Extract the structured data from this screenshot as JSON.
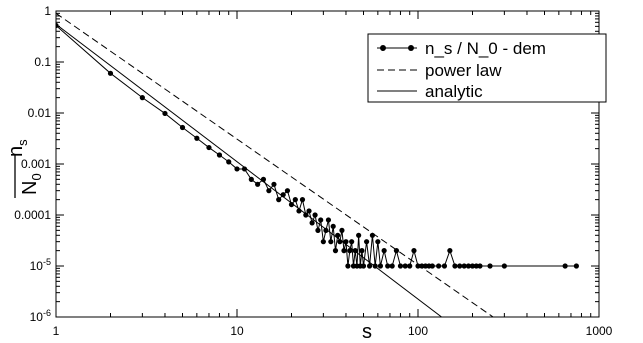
{
  "chart_data": {
    "type": "scatter",
    "title": "",
    "xlabel": "s",
    "ylabel": {
      "numerator": "n",
      "numerator_sub": "s",
      "denominator": "N",
      "denominator_sub": "0"
    },
    "xscale": "log",
    "yscale": "log",
    "xlim": [
      1,
      1000
    ],
    "ylim": [
      1e-06,
      1
    ],
    "grid": false,
    "legend_position": "top-right",
    "x_ticks": [
      {
        "value": 1,
        "label": "1"
      },
      {
        "value": 10,
        "label": "10"
      },
      {
        "value": 100,
        "label": "100"
      },
      {
        "value": 1000,
        "label": "1000"
      }
    ],
    "y_ticks": [
      {
        "value": 1,
        "label": "1",
        "base": "",
        "exp": ""
      },
      {
        "value": 0.1,
        "label": "0.1",
        "base": "",
        "exp": ""
      },
      {
        "value": 0.01,
        "label": "0.01",
        "base": "",
        "exp": ""
      },
      {
        "value": 0.001,
        "label": "0.001",
        "base": "",
        "exp": ""
      },
      {
        "value": 0.0001,
        "label": "0.0001",
        "base": "",
        "exp": ""
      },
      {
        "value": 1e-05,
        "label": "",
        "base": "10",
        "exp": "-5"
      },
      {
        "value": 1e-06,
        "label": "",
        "base": "10",
        "exp": "-6"
      }
    ],
    "series": [
      {
        "name": "n_s / N_0 - dem",
        "style": "line-markers",
        "points": [
          [
            1,
            0.52
          ],
          [
            2,
            0.06
          ],
          [
            3,
            0.02
          ],
          [
            4,
            0.0098
          ],
          [
            5,
            0.0052
          ],
          [
            6,
            0.0032
          ],
          [
            7,
            0.0021
          ],
          [
            8,
            0.0015
          ],
          [
            9,
            0.0011
          ],
          [
            10,
            0.0008
          ],
          [
            11,
            0.0008
          ],
          [
            12,
            0.0005
          ],
          [
            13,
            0.0004
          ],
          [
            14,
            0.0005
          ],
          [
            15,
            0.0003
          ],
          [
            16,
            0.0004
          ],
          [
            17,
            0.0002
          ],
          [
            18,
            0.00025
          ],
          [
            19,
            0.0003
          ],
          [
            20,
            0.00016
          ],
          [
            21,
            0.0002
          ],
          [
            22,
            0.00012
          ],
          [
            23,
            0.0002
          ],
          [
            24,
            0.0001
          ],
          [
            25,
            0.00012
          ],
          [
            26,
            7e-05
          ],
          [
            27,
            0.0001
          ],
          [
            28,
            5e-05
          ],
          [
            29,
            8e-05
          ],
          [
            30,
            3e-05
          ],
          [
            31,
            5e-05
          ],
          [
            32,
            8e-05
          ],
          [
            33,
            3e-05
          ],
          [
            34,
            6e-05
          ],
          [
            35,
            2e-05
          ],
          [
            36,
            4e-05
          ],
          [
            37,
            3e-05
          ],
          [
            38,
            5e-05
          ],
          [
            39,
            2e-05
          ],
          [
            40,
            3e-05
          ],
          [
            41,
            1e-05
          ],
          [
            42,
            2e-05
          ],
          [
            43,
            3e-05
          ],
          [
            44,
            1e-05
          ],
          [
            45,
            2e-05
          ],
          [
            46,
            1e-05
          ],
          [
            47,
            4e-05
          ],
          [
            48,
            1e-05
          ],
          [
            49,
            2e-05
          ],
          [
            50,
            1e-05
          ],
          [
            52,
            3e-05
          ],
          [
            54,
            1e-05
          ],
          [
            56,
            4e-05
          ],
          [
            58,
            1e-05
          ],
          [
            60,
            3e-05
          ],
          [
            62,
            1e-05
          ],
          [
            65,
            2e-05
          ],
          [
            68,
            1e-05
          ],
          [
            72,
            1e-05
          ],
          [
            76,
            2e-05
          ],
          [
            80,
            1e-05
          ],
          [
            85,
            1e-05
          ],
          [
            90,
            1e-05
          ],
          [
            95,
            2e-05
          ],
          [
            100,
            1e-05
          ],
          [
            105,
            1e-05
          ],
          [
            110,
            1e-05
          ],
          [
            115,
            1e-05
          ],
          [
            120,
            1e-05
          ],
          [
            130,
            1e-05
          ],
          [
            140,
            1e-05
          ],
          [
            150,
            2e-05
          ],
          [
            160,
            1e-05
          ],
          [
            170,
            1e-05
          ],
          [
            180,
            1e-05
          ],
          [
            190,
            1e-05
          ],
          [
            200,
            1e-05
          ],
          [
            210,
            1e-05
          ],
          [
            220,
            1e-05
          ],
          [
            250,
            1e-05
          ],
          [
            300,
            1e-05
          ],
          [
            650,
            1e-05
          ],
          [
            750,
            1e-05
          ]
        ]
      },
      {
        "name": "power law",
        "style": "dashed",
        "points": [
          [
            1,
            0.9
          ],
          [
            260,
            1e-06
          ]
        ]
      },
      {
        "name": "analytic",
        "style": "solid",
        "points": [
          [
            1,
            0.55
          ],
          [
            135,
            1e-06
          ]
        ]
      }
    ]
  }
}
